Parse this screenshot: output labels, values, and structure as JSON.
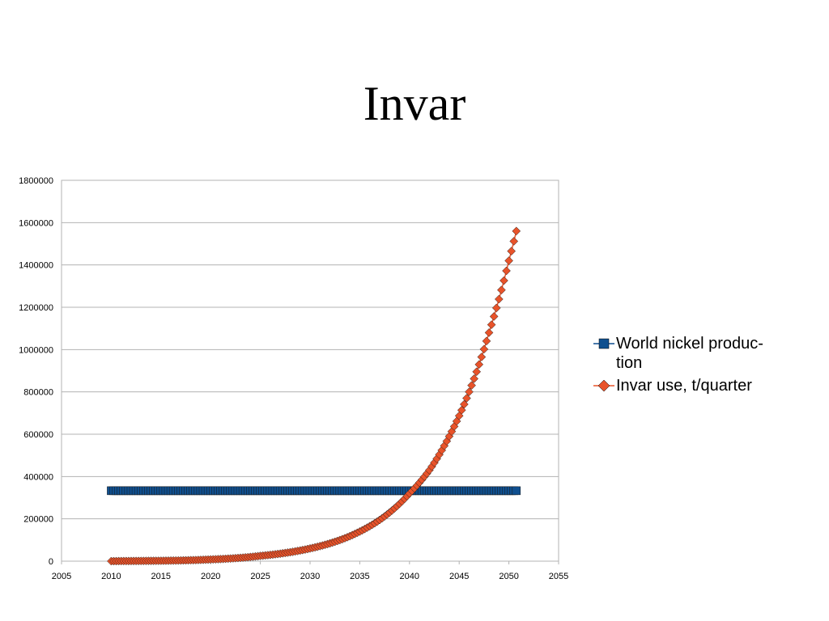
{
  "slide": {
    "title": "Invar"
  },
  "chart_data": {
    "type": "scatter",
    "title": "",
    "xlabel": "",
    "ylabel": "",
    "xlim": [
      2005,
      2055
    ],
    "ylim": [
      0,
      1800000
    ],
    "x_ticks": [
      2005,
      2010,
      2015,
      2020,
      2025,
      2030,
      2035,
      2040,
      2045,
      2050,
      2055
    ],
    "y_ticks": [
      0,
      200000,
      400000,
      600000,
      800000,
      1000000,
      1200000,
      1400000,
      1600000,
      1800000
    ],
    "grid": "horizontal",
    "legend_position": "right",
    "series": [
      {
        "name": "World nickel produc-tion",
        "color": "#0f4f8f",
        "marker": "square",
        "sampling": "quarterly",
        "x_start": 2010.0,
        "x_end": 2050.75,
        "constant_value": 333000
      },
      {
        "name": "Invar use, t/quarter",
        "color": "#e8532a",
        "marker": "diamond",
        "sampling": "quarterly",
        "x_start": 2010.0,
        "x_end": 2050.75,
        "points": [
          [
            2010,
            0
          ],
          [
            2015,
            2000
          ],
          [
            2020,
            8000
          ],
          [
            2025,
            25000
          ],
          [
            2030,
            60000
          ],
          [
            2035,
            140000
          ],
          [
            2040,
            320000
          ],
          [
            2042,
            430000
          ],
          [
            2044,
            590000
          ],
          [
            2046,
            800000
          ],
          [
            2048,
            1080000
          ],
          [
            2050,
            1420000
          ],
          [
            2050.75,
            1560000
          ]
        ]
      }
    ]
  }
}
